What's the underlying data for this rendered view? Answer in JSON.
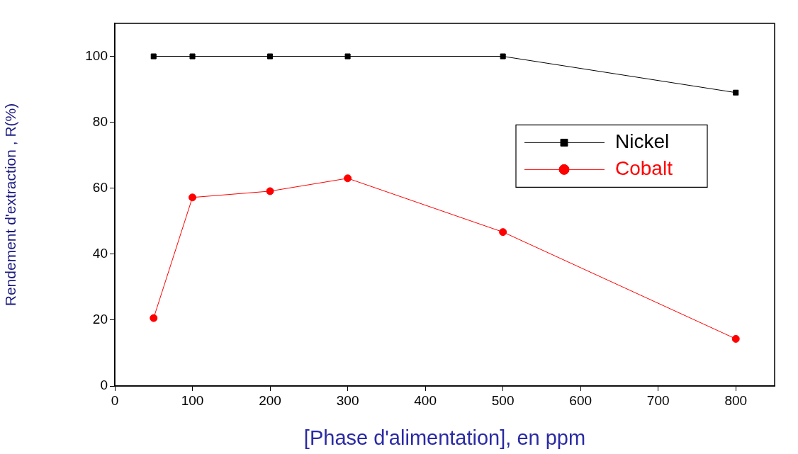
{
  "chart_data": {
    "type": "line",
    "xlabel": "[Phase d'alimentation], en ppm",
    "ylabel": "Rendement d'extraction , R(%)",
    "x": [
      50,
      100,
      200,
      300,
      500,
      800
    ],
    "series": [
      {
        "name": "Nickel",
        "color": "#000000",
        "marker": "square",
        "values": [
          100,
          100,
          100,
          100,
          100,
          89
        ]
      },
      {
        "name": "Cobalt",
        "color": "#ff0000",
        "marker": "circle",
        "values": [
          20.6,
          57.2,
          59.1,
          63,
          46.7,
          14.3
        ]
      }
    ],
    "xlim": [
      0,
      850
    ],
    "xticks": [
      0,
      100,
      200,
      300,
      400,
      500,
      600,
      700,
      800
    ],
    "ylim": [
      0,
      110
    ],
    "yticks": [
      0,
      20,
      40,
      60,
      80,
      100
    ],
    "legend": "right",
    "line_style": "solid"
  }
}
